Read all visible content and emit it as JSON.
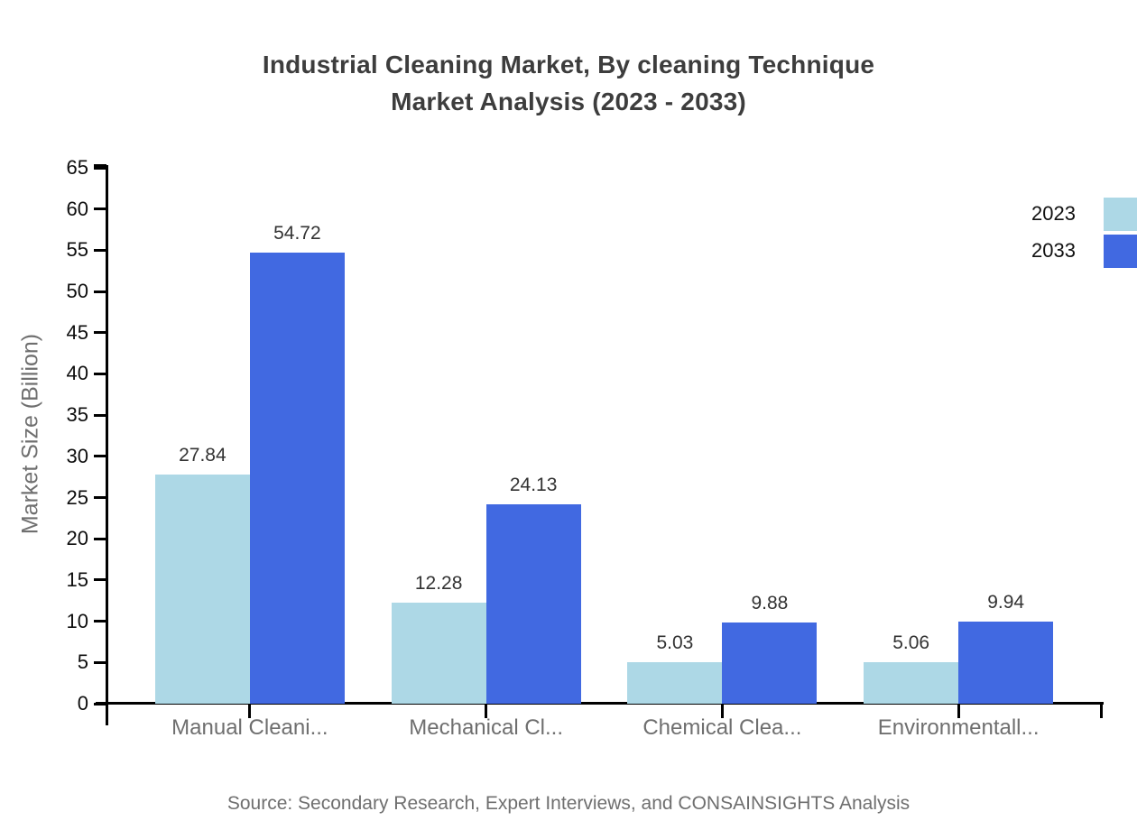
{
  "title": {
    "line1": "Industrial Cleaning Market, By cleaning Technique",
    "line2": "Market Analysis (2023 - 2033)"
  },
  "source": "Source: Secondary Research, Expert Interviews, and CONSAINSIGHTS Analysis",
  "chart_data": {
    "type": "bar",
    "title": "Industrial Cleaning Market, By cleaning Technique Market Analysis (2023 - 2033)",
    "xlabel": "",
    "ylabel": "Market Size (Billion)",
    "categories": [
      "Manual Cleani...",
      "Mechanical Cl...",
      "Chemical Clea...",
      "Environmentall..."
    ],
    "series": [
      {
        "name": "2023",
        "color": "#ADD8E6",
        "values": [
          27.84,
          12.28,
          5.03,
          5.06
        ]
      },
      {
        "name": "2033",
        "color": "#4169E1",
        "values": [
          54.72,
          24.13,
          9.88,
          9.94
        ]
      }
    ],
    "ylim": [
      0,
      65
    ],
    "y_tick_step": 5,
    "grid": false,
    "legend_position": "top-right",
    "value_labels": true,
    "value_label_color": "#333333",
    "axis_color": "#000000"
  }
}
